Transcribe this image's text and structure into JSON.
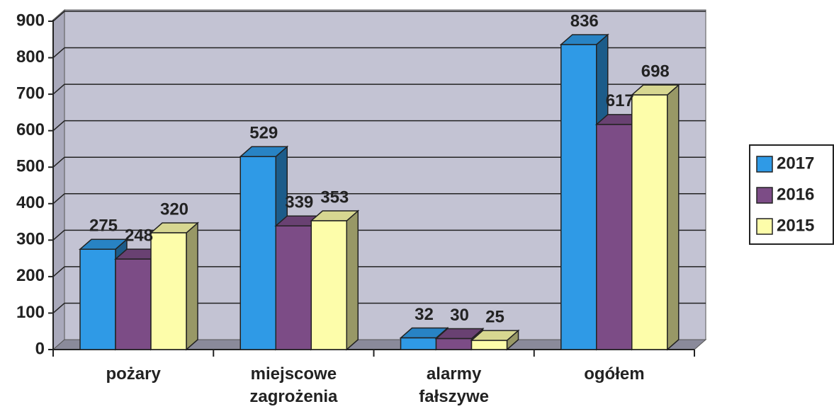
{
  "chart_data": {
    "type": "bar3d",
    "categories": [
      "pożary",
      "miejscowe zagrożenia",
      "alarmy fałszywe",
      "ogółem"
    ],
    "series": [
      {
        "name": "2017",
        "color": "#2f9ae6",
        "values": [
          275,
          529,
          32,
          836
        ]
      },
      {
        "name": "2016",
        "color": "#7c4c86",
        "values": [
          248,
          339,
          30,
          617
        ]
      },
      {
        "name": "2015",
        "color": "#fdfdaa",
        "values": [
          320,
          353,
          25,
          698
        ]
      }
    ],
    "ylim": [
      0,
      900
    ],
    "yticks": [
      0,
      100,
      200,
      300,
      400,
      500,
      600,
      700,
      800,
      900
    ],
    "grid": true,
    "legend": "right"
  }
}
